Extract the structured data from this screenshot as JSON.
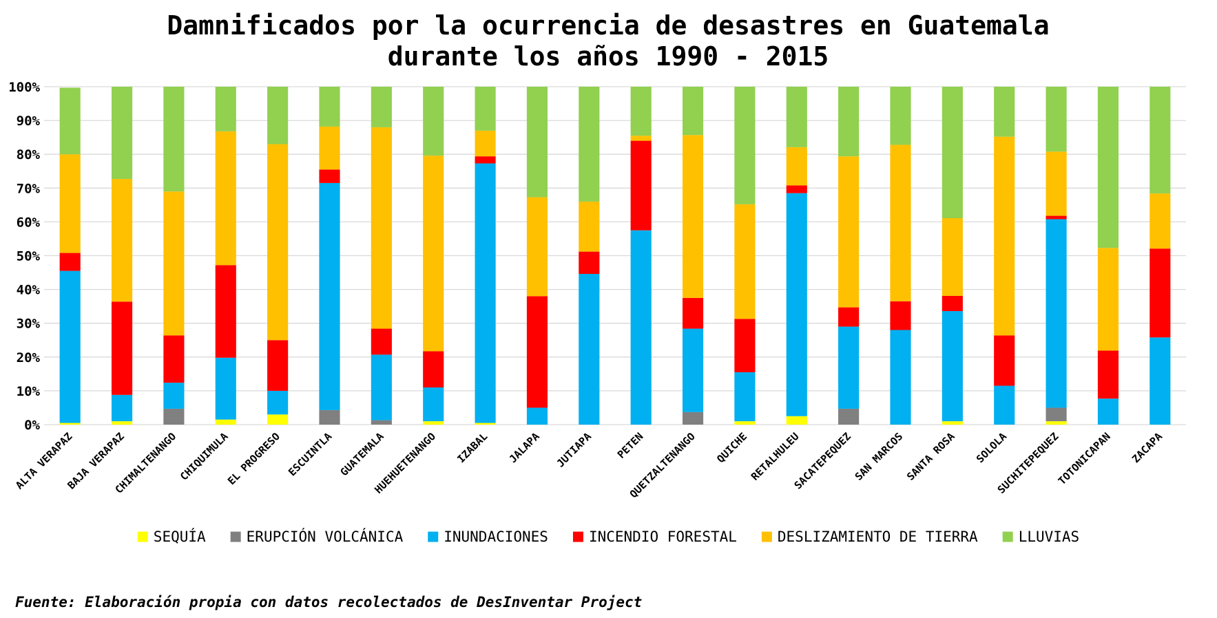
{
  "chart_data": {
    "type": "bar",
    "stacked": true,
    "normalized": true,
    "title": "Damnificados por la ocurrencia de desastres en Guatemala durante los años 1990 - 2015",
    "title_lines": [
      "Damnificados por la ocurrencia de desastres en Guatemala",
      "durante los años 1990 - 2015"
    ],
    "source": "Fuente: Elaboración propia con datos recolectados de DesInventar Project",
    "ylim": [
      0,
      100
    ],
    "yticks": [
      "0%",
      "10%",
      "20%",
      "30%",
      "40%",
      "50%",
      "60%",
      "70%",
      "80%",
      "90%",
      "100%"
    ],
    "grid": true,
    "legend_position": "bottom",
    "categories": [
      "ALTA VERAPAZ",
      "BAJA VERAPAZ",
      "CHIMALTENANGO",
      "CHIQUIMULA",
      "EL PROGRESO",
      "ESCUINTLA",
      "GUATEMALA",
      "HUEHUETENANGO",
      "IZABAL",
      "JALAPA",
      "JUTIAPA",
      "PETEN",
      "QUETZALTENANGO",
      "QUICHE",
      "RETALHULEU",
      "SACATEPEQUEZ",
      "SAN MARCOS",
      "SANTA ROSA",
      "SOLOLA",
      "SUCHITEPEQUEZ",
      "TOTONICAPAN",
      "ZACAPA"
    ],
    "series": [
      {
        "name": "SEQUÍA",
        "color": "#FFFF00",
        "values": [
          0.5,
          1.0,
          0,
          1.5,
          3.0,
          0,
          0,
          1.0,
          0.5,
          0,
          0,
          0,
          0,
          1.0,
          2.5,
          0,
          0,
          1.0,
          0,
          1.0,
          0,
          0
        ]
      },
      {
        "name": "ERUPCIÓN VOLCÁNICA",
        "color": "#808080",
        "values": [
          0,
          0,
          4.7,
          0,
          0,
          4.3,
          1.3,
          0,
          0,
          0,
          0,
          0,
          3.7,
          0,
          0,
          4.7,
          0,
          0,
          0,
          4.0,
          0,
          0
        ]
      },
      {
        "name": "INUNDACIONES",
        "color": "#00B0F0",
        "values": [
          45.0,
          7.8,
          7.7,
          18.3,
          7.0,
          67.2,
          19.4,
          10.0,
          76.8,
          5.0,
          44.6,
          57.5,
          24.7,
          14.5,
          66.0,
          24.3,
          28.0,
          32.6,
          11.5,
          55.8,
          7.7,
          25.8
        ]
      },
      {
        "name": "INCENDIO FORESTAL",
        "color": "#FF0000",
        "values": [
          5.3,
          27.6,
          14.0,
          27.4,
          15.0,
          4.0,
          7.7,
          10.7,
          2.1,
          33.0,
          6.6,
          26.5,
          9.1,
          15.8,
          2.3,
          5.7,
          8.5,
          4.5,
          14.9,
          1.0,
          14.2,
          26.3
        ]
      },
      {
        "name": "DESLIZAMIENTO DE TIERRA",
        "color": "#FFC000",
        "values": [
          29.2,
          36.3,
          42.6,
          39.6,
          58.0,
          12.7,
          59.6,
          57.9,
          7.6,
          29.3,
          14.8,
          1.5,
          48.2,
          33.9,
          11.3,
          44.7,
          46.3,
          23.0,
          58.8,
          19.0,
          30.4,
          16.3
        ]
      },
      {
        "name": "LLUVIAS",
        "color": "#92D050",
        "values": [
          19.7,
          27.3,
          31.0,
          13.2,
          17.0,
          11.8,
          12.0,
          20.4,
          13.0,
          32.7,
          34.0,
          14.5,
          14.3,
          34.8,
          17.9,
          20.6,
          17.2,
          38.9,
          14.8,
          19.2,
          47.7,
          31.6
        ]
      }
    ]
  },
  "colors": {
    "background": "#FFFFFF",
    "grid": "#D9D9D9",
    "text": "#000000"
  }
}
